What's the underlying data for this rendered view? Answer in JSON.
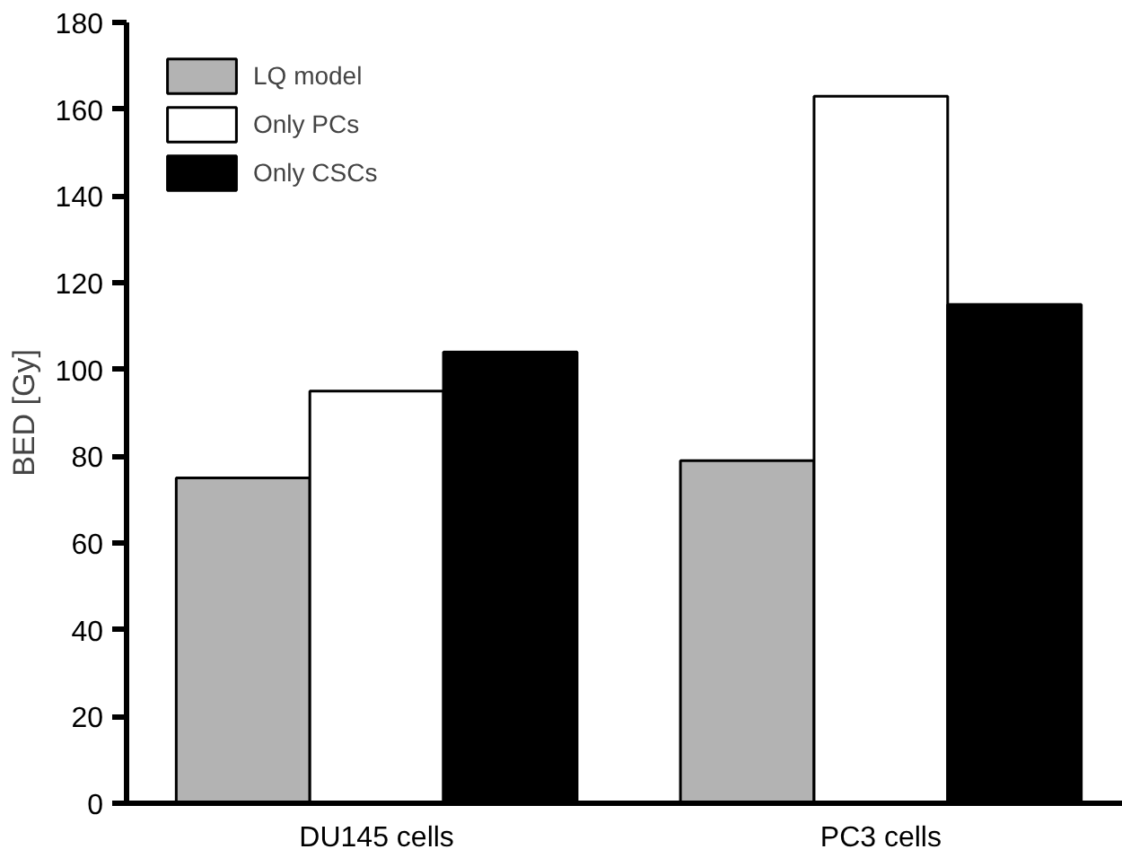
{
  "chart_data": {
    "type": "bar",
    "ylabel": "BED [Gy]",
    "categories": [
      "DU145 cells",
      "PC3 cells"
    ],
    "series": [
      {
        "name": "LQ model",
        "color": "#b3b3b3",
        "values": [
          75,
          79
        ]
      },
      {
        "name": "Only PCs",
        "color": "#ffffff",
        "values": [
          95,
          163
        ]
      },
      {
        "name": "Only CSCs",
        "color": "#000000",
        "values": [
          104,
          115
        ]
      }
    ],
    "ylim": [
      0,
      180
    ],
    "yticks": [
      0,
      20,
      40,
      60,
      80,
      100,
      120,
      140,
      160,
      180
    ],
    "grid": false,
    "legend": "top left"
  }
}
